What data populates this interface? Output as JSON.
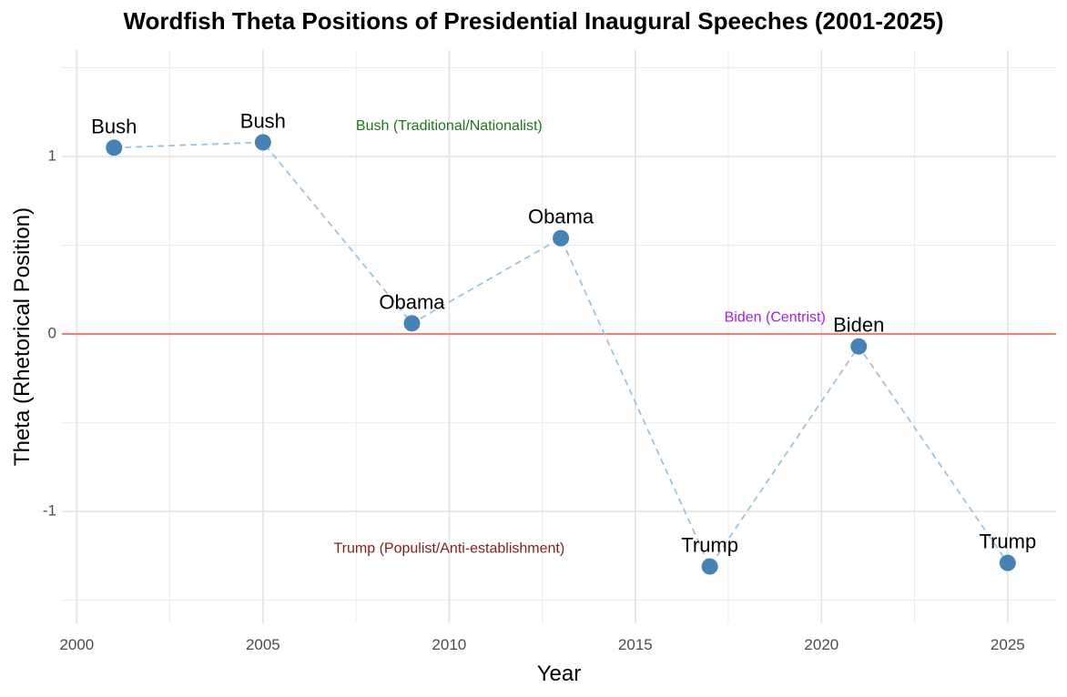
{
  "chart_data": {
    "type": "line",
    "title": "Wordfish Theta Positions of Presidential Inaugural Speeches (2001-2025)",
    "xlabel": "Year",
    "ylabel": "Theta (Rhetorical Position)",
    "xlim": [
      1999.6,
      2026.3
    ],
    "ylim": [
      -1.63,
      1.6
    ],
    "xticks": [
      2000,
      2005,
      2010,
      2015,
      2020,
      2025
    ],
    "xtick_labels": [
      "2000",
      "2005",
      "2010",
      "2015",
      "2020",
      "2025"
    ],
    "yticks": [
      -1,
      0,
      1
    ],
    "ytick_labels": [
      "-1",
      "0",
      "1"
    ],
    "grid": true,
    "reference_line": {
      "y": 0,
      "color": "#f8766d"
    },
    "series": [
      {
        "line_style": "dashed",
        "line_color": "#9ec3e0",
        "point_color": "#4682b4",
        "points": [
          {
            "x": 2001,
            "y": 1.05,
            "label": "Bush"
          },
          {
            "x": 2005,
            "y": 1.08,
            "label": "Bush"
          },
          {
            "x": 2009,
            "y": 0.06,
            "label": "Obama"
          },
          {
            "x": 2013,
            "y": 0.54,
            "label": "Obama"
          },
          {
            "x": 2017,
            "y": -1.31,
            "label": "Trump"
          },
          {
            "x": 2021,
            "y": -0.07,
            "label": "Biden"
          },
          {
            "x": 2025,
            "y": -1.29,
            "label": "Trump"
          }
        ]
      }
    ],
    "annotations": [
      {
        "text": "Bush (Traditional/Nationalist)",
        "x": 2010,
        "y": 1.17,
        "color": "#1a7a1a"
      },
      {
        "text": "Biden (Centrist)",
        "x": 2018.75,
        "y": 0.09,
        "color": "#a020f0"
      },
      {
        "text": "Trump (Populist/Anti-establishment)",
        "x": 2010,
        "y": -1.21,
        "color": "#8b1a1a"
      }
    ]
  }
}
